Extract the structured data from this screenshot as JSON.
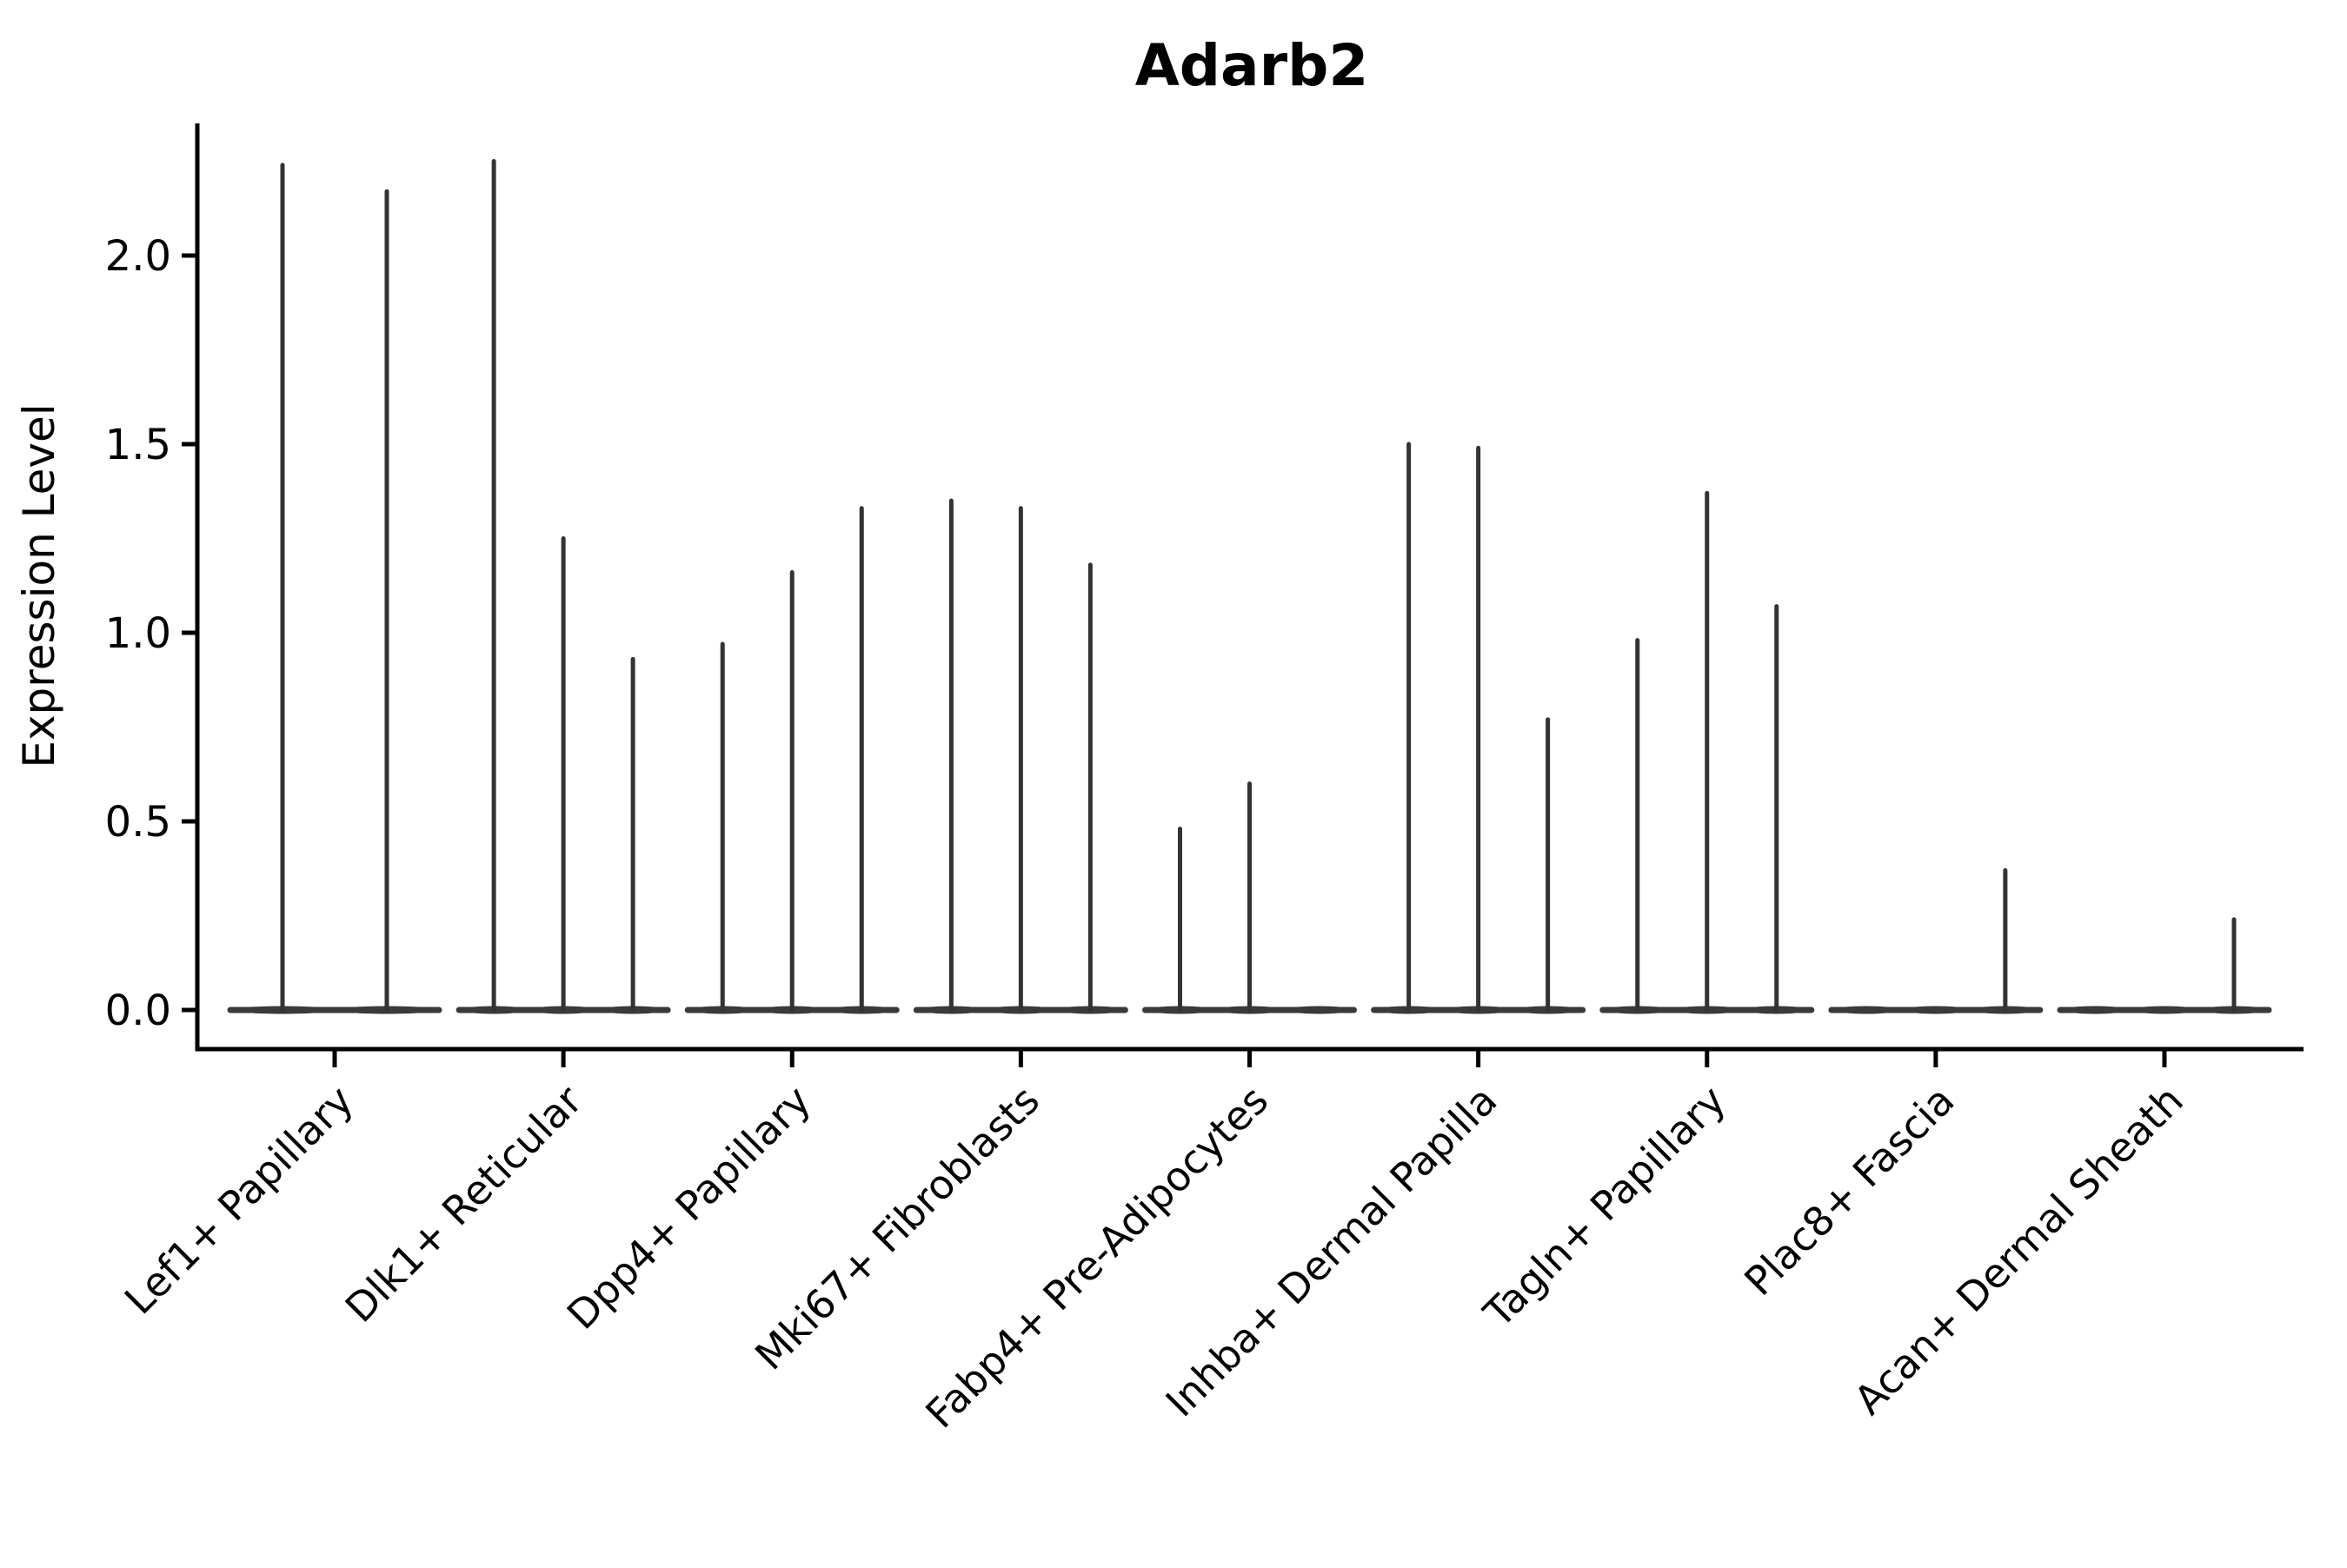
{
  "chart_data": {
    "type": "violin",
    "title": "Adarb2",
    "xlabel": "",
    "ylabel": "Expression Level",
    "y_ticks": [
      0.0,
      0.5,
      1.0,
      1.5,
      2.0
    ],
    "y_tick_labels": [
      "0.0",
      "0.5",
      "1.0",
      "1.5",
      "2.0"
    ],
    "ylim": [
      -0.1,
      2.35
    ],
    "grid": false,
    "legend": "none",
    "x_tick_rotation_deg": 45,
    "description": "Needle-thin violins: flat density bulge at expression 0 plus a thin spike reaching the maximum expression value. A maximum of 0 means the violin is completely flat at zero.",
    "groups": [
      {
        "category": "Lef1+ Papillary",
        "violin_maxima": [
          2.24,
          2.17
        ]
      },
      {
        "category": "Dlk1+ Reticular",
        "violin_maxima": [
          2.25,
          1.25,
          0.93
        ]
      },
      {
        "category": "Dpp4+ Papillary",
        "violin_maxima": [
          0.97,
          1.16,
          1.33
        ]
      },
      {
        "category": "Mki67+ Fibroblasts",
        "violin_maxima": [
          1.35,
          1.33,
          1.18
        ]
      },
      {
        "category": "Fabp4+ Pre-Adipocytes",
        "violin_maxima": [
          0.48,
          0.6,
          0
        ]
      },
      {
        "category": "Inhba+ Dermal Papilla",
        "violin_maxima": [
          1.5,
          1.49,
          0.77
        ]
      },
      {
        "category": "Tagln+ Papillary",
        "violin_maxima": [
          0.98,
          1.37,
          1.07
        ]
      },
      {
        "category": "Plac8+ Fascia",
        "violin_maxima": [
          0,
          0,
          0.37
        ]
      },
      {
        "category": "Acan+ Dermal Sheath",
        "violin_maxima": [
          0,
          0,
          0.24
        ]
      }
    ],
    "colors": {
      "violin_stroke": "#333333",
      "violin_base": "#3a3a3a",
      "axis": "#000000",
      "text": "#000000",
      "background": "#ffffff"
    }
  }
}
